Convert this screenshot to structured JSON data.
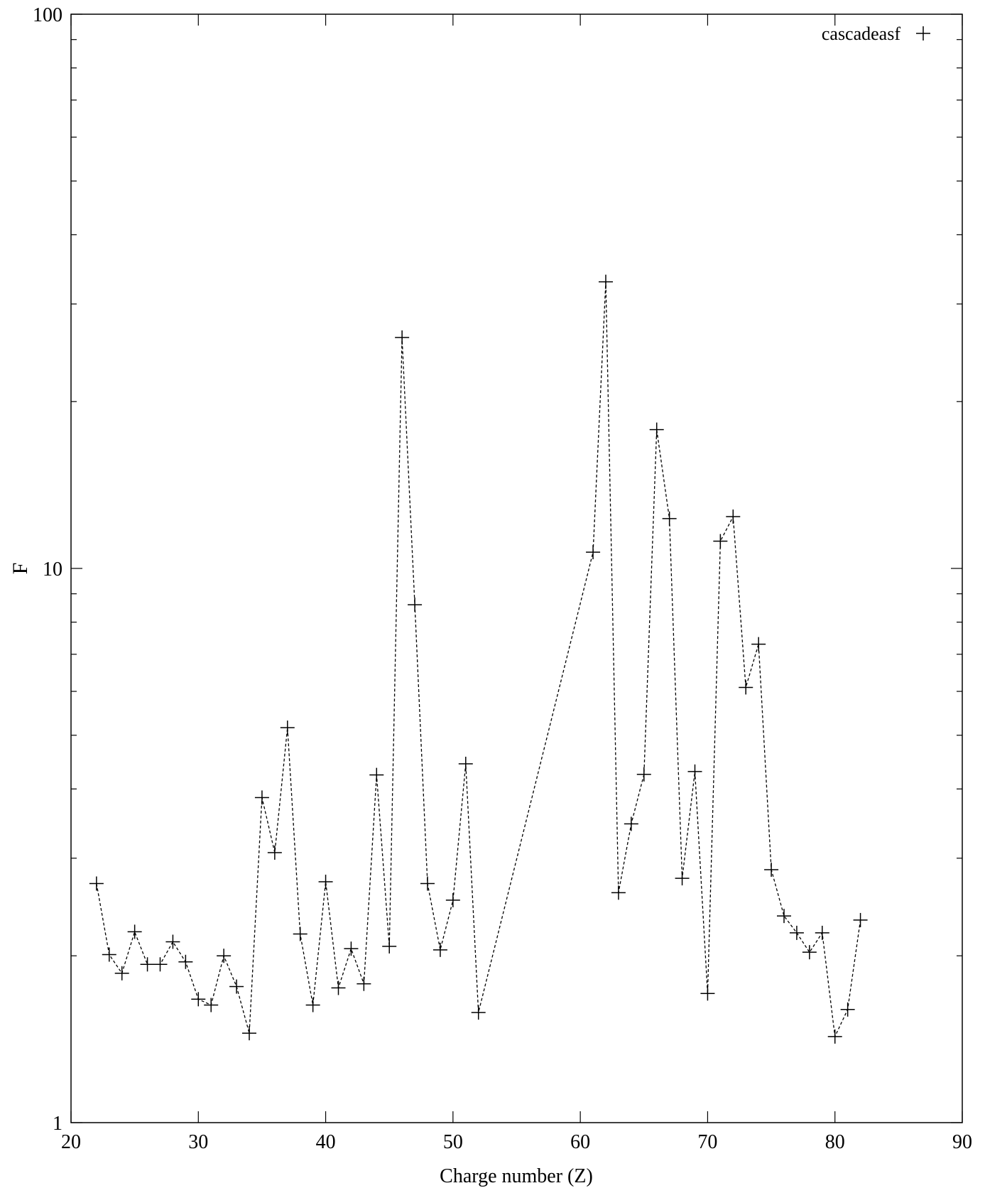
{
  "chart_data": {
    "type": "scatter",
    "title": "",
    "xlabel": "Charge number (Z)",
    "ylabel": "F",
    "xlim": [
      20,
      90
    ],
    "ylim": [
      1,
      100
    ],
    "yscale": "log",
    "grid": false,
    "legend_position": "top-right",
    "x_ticks": [
      20,
      30,
      40,
      50,
      60,
      70,
      80,
      90
    ],
    "y_ticks": [
      1,
      10,
      100
    ],
    "series": [
      {
        "name": "cascadeasf",
        "marker": "plus",
        "line": "dashed",
        "x": [
          22,
          23,
          24,
          25,
          26,
          27,
          28,
          29,
          30,
          31,
          32,
          33,
          34,
          35,
          36,
          37,
          38,
          39,
          40,
          41,
          42,
          43,
          44,
          45,
          46,
          47,
          48,
          49,
          50,
          51,
          52,
          61,
          62,
          63,
          64,
          65,
          66,
          67,
          68,
          69,
          70,
          71,
          72,
          73,
          74,
          75,
          76,
          77,
          78,
          79,
          80,
          81,
          82
        ],
        "y": [
          2.7,
          2.01,
          1.86,
          2.21,
          1.93,
          1.93,
          2.12,
          1.95,
          1.67,
          1.63,
          2.0,
          1.76,
          1.45,
          3.86,
          3.07,
          5.16,
          2.19,
          1.63,
          2.72,
          1.75,
          2.06,
          1.78,
          4.24,
          2.08,
          26.1,
          8.6,
          2.7,
          2.05,
          2.52,
          4.44,
          1.58,
          10.7,
          32.9,
          2.6,
          3.46,
          4.25,
          17.8,
          12.3,
          2.76,
          4.3,
          1.71,
          11.2,
          12.4,
          6.1,
          7.3,
          2.86,
          2.36,
          2.2,
          2.03,
          2.2,
          1.43,
          1.6,
          2.32
        ]
      }
    ]
  }
}
